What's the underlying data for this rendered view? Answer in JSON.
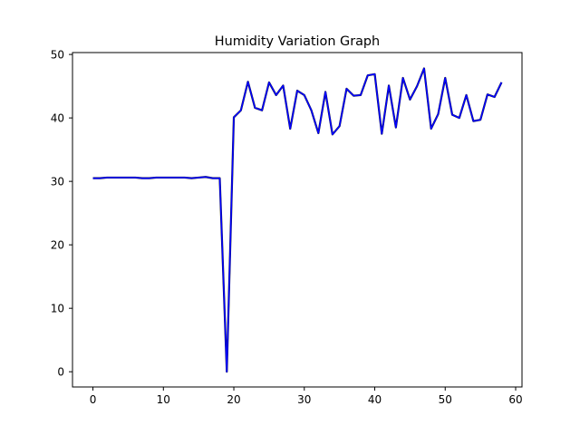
{
  "chart_data": {
    "type": "line",
    "title": "Humidity Variation Graph",
    "xlabel": "",
    "ylabel": "",
    "xlim": [
      -2.9,
      60.9
    ],
    "ylim": [
      -2.4,
      50.3
    ],
    "x_ticks": [
      0,
      10,
      20,
      30,
      40,
      50,
      60
    ],
    "y_ticks": [
      0,
      10,
      20,
      30,
      40,
      50
    ],
    "grid": false,
    "legend": "none",
    "series": [
      {
        "color": "#0000ff",
        "shadow_color": "#1a1a1a",
        "x": [
          0,
          1,
          2,
          3,
          4,
          5,
          6,
          7,
          8,
          9,
          10,
          11,
          12,
          13,
          14,
          15,
          16,
          17,
          18,
          19,
          20,
          21,
          22,
          23,
          24,
          25,
          26,
          27,
          28,
          29,
          30,
          31,
          32,
          33,
          34,
          35,
          36,
          37,
          38,
          39,
          40,
          41,
          42,
          43,
          44,
          45,
          46,
          47,
          48,
          49,
          50,
          51,
          52,
          53,
          54,
          55,
          56,
          57,
          58
        ],
        "values": [
          30.5,
          30.5,
          30.6,
          30.6,
          30.6,
          30.6,
          30.6,
          30.5,
          30.5,
          30.6,
          30.6,
          30.6,
          30.6,
          30.6,
          30.5,
          30.6,
          30.7,
          30.5,
          30.5,
          0.0,
          40.1,
          41.2,
          45.7,
          41.6,
          41.2,
          45.6,
          43.6,
          45.1,
          38.3,
          44.3,
          43.6,
          41.2,
          37.6,
          44.1,
          37.4,
          38.7,
          44.6,
          43.5,
          43.6,
          46.7,
          46.9,
          37.5,
          45.1,
          38.5,
          46.3,
          42.9,
          45.0,
          47.8,
          38.3,
          40.6,
          46.3,
          40.5,
          40.0,
          43.6,
          39.5,
          39.7,
          43.7,
          43.3,
          45.6
        ]
      }
    ]
  }
}
